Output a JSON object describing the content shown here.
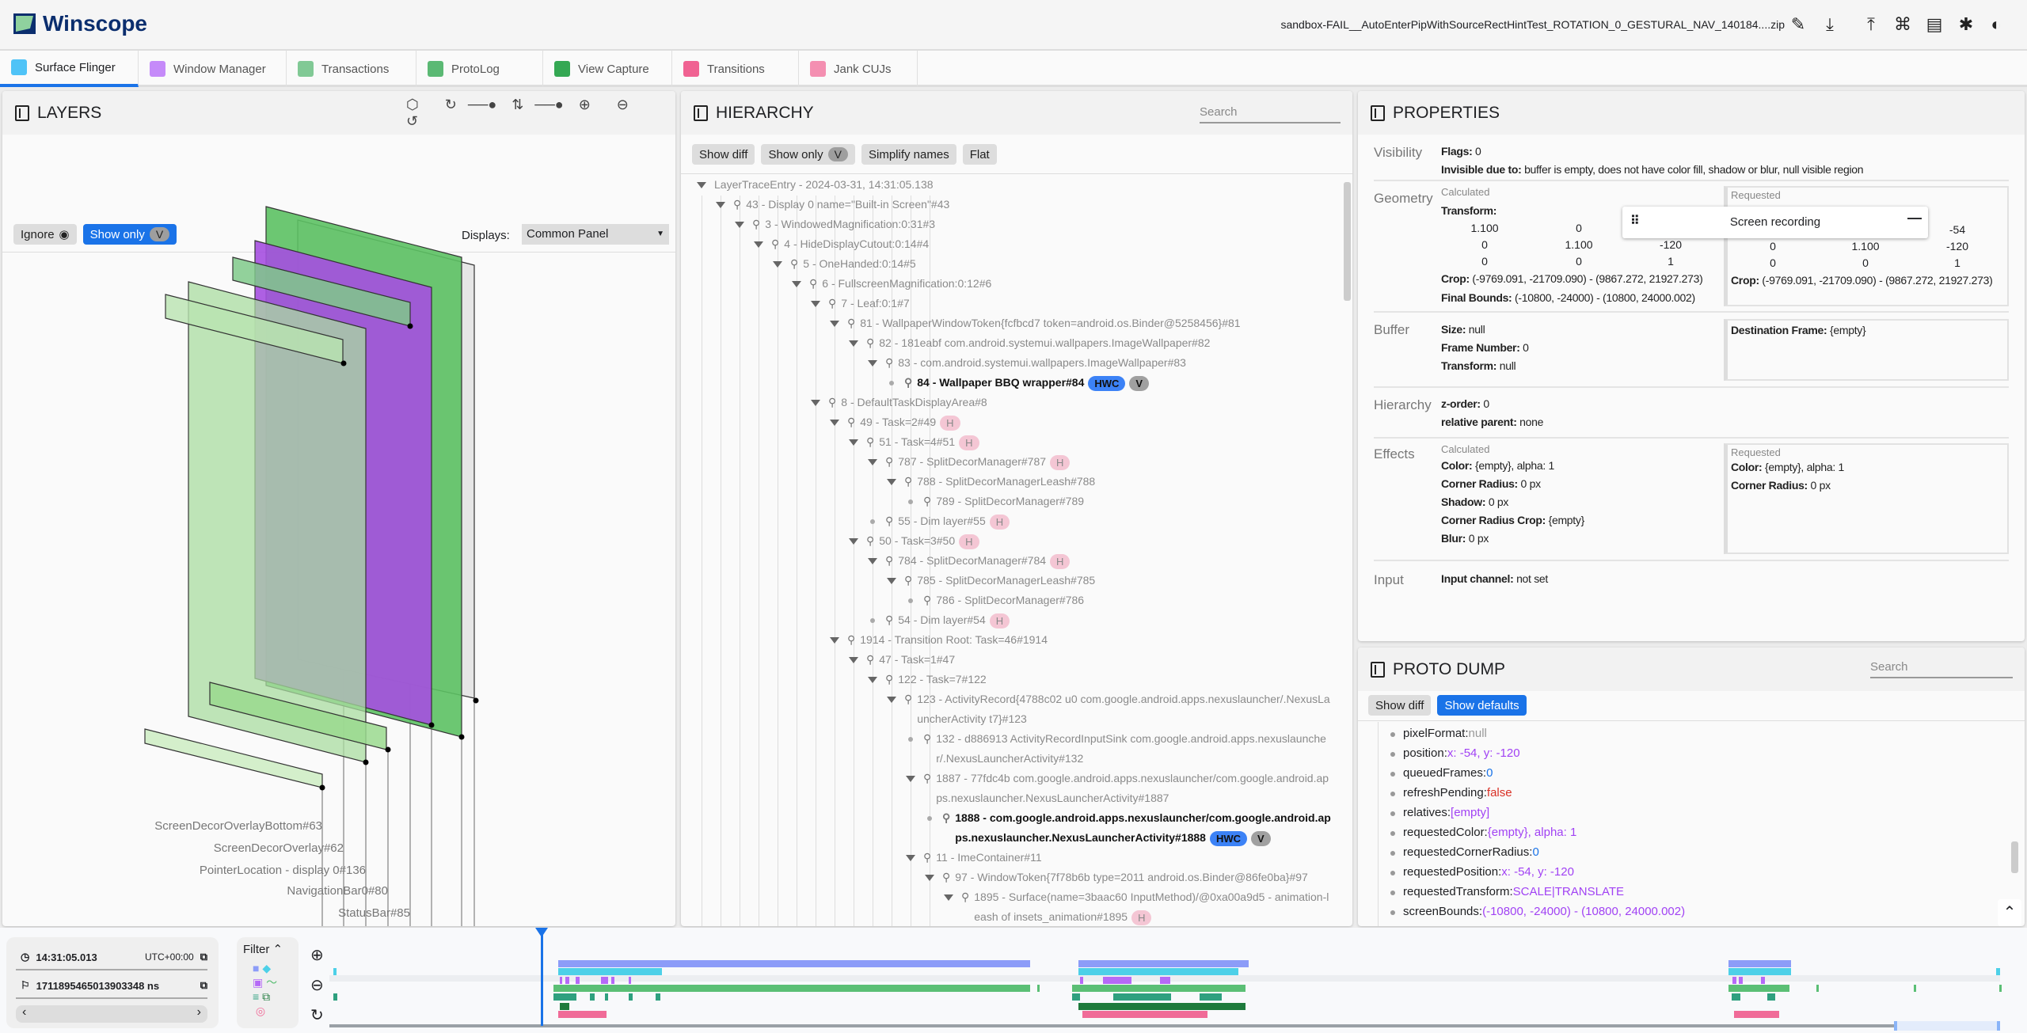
{
  "app": {
    "title": "Winscope",
    "filename": "sandbox-FAIL__AutoEnterPipWithSourceRectHintTest_ROTATION_0_GESTURAL_NAV_140184....zip",
    "icons": [
      "edit-icon",
      "download-icon",
      "upload-icon",
      "shortcut-icon",
      "docs-icon",
      "bug-icon",
      "theme-icon"
    ]
  },
  "tabs": [
    {
      "label": "Surface Flinger",
      "color": "#4fc3f7"
    },
    {
      "label": "Window Manager",
      "color": "#c58af9"
    },
    {
      "label": "Transactions",
      "color": "#81c995"
    },
    {
      "label": "ProtoLog",
      "color": "#5bb974"
    },
    {
      "label": "View Capture",
      "color": "#34a853"
    },
    {
      "label": "Transitions",
      "color": "#f06292"
    },
    {
      "label": "Jank CUJs",
      "color": "#f48fb1"
    }
  ],
  "layers": {
    "title": "LAYERS",
    "ignore": "Ignore",
    "show_only": "Show only",
    "v": "V",
    "displays_label": "Displays:",
    "display_value": "Common Panel",
    "labels": [
      "ScreenDecorOverlayBottom#63",
      "ScreenDecorOverlay#62",
      "PointerLocation - display 0#136",
      "NavigationBar0#80",
      "StatusBar#85"
    ]
  },
  "hierarchy": {
    "title": "HIERARCHY",
    "search_placeholder": "Search",
    "buttons": {
      "show_diff": "Show diff",
      "show_only": "Show only",
      "v": "V",
      "simplify": "Simplify names",
      "flat": "Flat"
    },
    "rows": [
      {
        "d": 0,
        "t": "LayerTraceEntry - 2024-03-31, 14:31:05.138",
        "exp": true,
        "root": true
      },
      {
        "d": 1,
        "t": "43 - Display 0 name=\"Built-in Screen\"#43",
        "exp": true
      },
      {
        "d": 2,
        "t": "3 - WindowedMagnification:0:31#3",
        "exp": true
      },
      {
        "d": 3,
        "t": "4 - HideDisplayCutout:0:14#4",
        "exp": true
      },
      {
        "d": 4,
        "t": "5 - OneHanded:0:14#5",
        "exp": true
      },
      {
        "d": 5,
        "t": "6 - FullscreenMagnification:0:12#6",
        "exp": true
      },
      {
        "d": 6,
        "t": "7 - Leaf:0:1#7",
        "exp": true
      },
      {
        "d": 7,
        "t": "81 - WallpaperWindowToken{fcfbcd7 token=android.os.Binder@5258456}#81",
        "exp": true
      },
      {
        "d": 8,
        "t": "82 - 181eabf com.android.systemui.wallpapers.ImageWallpaper#82",
        "exp": true
      },
      {
        "d": 9,
        "t": "83 - com.android.systemui.wallpapers.ImageWallpaper#83",
        "exp": true
      },
      {
        "d": 10,
        "t": "84 - Wallpaper BBQ wrapper#84",
        "bold": true,
        "badges": [
          "HWC",
          "V"
        ]
      },
      {
        "d": 6,
        "t": "8 - DefaultTaskDisplayArea#8",
        "exp": true
      },
      {
        "d": 7,
        "t": "49 - Task=2#49",
        "exp": true,
        "badges": [
          "H"
        ]
      },
      {
        "d": 8,
        "t": "51 - Task=4#51",
        "exp": true,
        "badges": [
          "H"
        ]
      },
      {
        "d": 9,
        "t": "787 - SplitDecorManager#787",
        "exp": true,
        "badges": [
          "H"
        ]
      },
      {
        "d": 10,
        "t": "788 - SplitDecorManagerLeash#788",
        "exp": true
      },
      {
        "d": 11,
        "t": "789 - SplitDecorManager#789"
      },
      {
        "d": 9,
        "t": "55 - Dim layer#55",
        "badges": [
          "H"
        ]
      },
      {
        "d": 8,
        "t": "50 - Task=3#50",
        "exp": true,
        "badges": [
          "H"
        ]
      },
      {
        "d": 9,
        "t": "784 - SplitDecorManager#784",
        "exp": true,
        "badges": [
          "H"
        ]
      },
      {
        "d": 10,
        "t": "785 - SplitDecorManagerLeash#785",
        "exp": true
      },
      {
        "d": 11,
        "t": "786 - SplitDecorManager#786"
      },
      {
        "d": 9,
        "t": "54 - Dim layer#54",
        "badges": [
          "H"
        ]
      },
      {
        "d": 7,
        "t": "1914 - Transition Root: Task=46#1914",
        "exp": true
      },
      {
        "d": 8,
        "t": "47 - Task=1#47",
        "exp": true
      },
      {
        "d": 9,
        "t": "122 - Task=7#122",
        "exp": true
      },
      {
        "d": 10,
        "t": "123 - ActivityRecord{4788c02 u0 com.google.android.apps.nexuslauncher/.NexusLauncherActivity t7}#123",
        "exp": true,
        "wrap": true
      },
      {
        "d": 11,
        "t": "132 - d886913 ActivityRecordInputSink com.google.android.apps.nexuslauncher/.NexusLauncherActivity#132",
        "wrap": true
      },
      {
        "d": 11,
        "t": "1887 - 77fdc4b com.google.android.apps.nexuslauncher/com.google.android.apps.nexuslauncher.NexusLauncherActivity#1887",
        "exp": true,
        "wrap": true
      },
      {
        "d": 12,
        "t": "1888 - com.google.android.apps.nexuslauncher/com.google.android.apps.nexuslauncher.NexusLauncherActivity#1888",
        "bold": true,
        "wrap": true,
        "badges": [
          "HWC",
          "V"
        ]
      },
      {
        "d": 11,
        "t": "11 - ImeContainer#11",
        "exp": true
      },
      {
        "d": 12,
        "t": "97 - WindowToken{7f78b6b type=2011 android.os.Binder@86fe0ba}#97",
        "exp": true
      },
      {
        "d": 13,
        "t": "1895 - Surface(name=3baac60 InputMethod)/@0xa00a9d5 - animation-leash of insets_animation#1895",
        "exp": true,
        "wrap": true,
        "badges": [
          "H"
        ]
      }
    ]
  },
  "properties": {
    "title": "PROPERTIES",
    "visibility": {
      "label": "Visibility",
      "flags_k": "Flags:",
      "flags_v": "0",
      "inv_k": "Invisible due to:",
      "inv_v": "buffer is empty, does not have color fill, shadow or blur, null visible region"
    },
    "geometry": {
      "label": "Geometry",
      "calculated": "Calculated",
      "requested": "Requested",
      "transform_k": "Transform:",
      "calc_matrix": [
        [
          "1.100",
          "0",
          ""
        ],
        [
          "0",
          "1.100",
          "-120"
        ],
        [
          "0",
          "0",
          "1"
        ]
      ],
      "req_matrix": [
        [
          "",
          "",
          "-54"
        ],
        [
          "0",
          "1.100",
          "-120"
        ],
        [
          "0",
          "0",
          "1"
        ]
      ],
      "crop_k": "Crop:",
      "crop_v": "(-9769.091, -21709.090) - (9867.272, 21927.273)",
      "req_crop_v": "(-9769.091, -21709.090) - (9867.272, 21927.273)",
      "fb_k": "Final Bounds:",
      "fb_v": "(-10800, -24000) - (10800, 24000.002)"
    },
    "buffer": {
      "label": "Buffer",
      "size_k": "Size:",
      "size_v": "null",
      "fn_k": "Frame Number:",
      "fn_v": "0",
      "tr_k": "Transform:",
      "tr_v": "null",
      "df_k": "Destination Frame:",
      "df_v": "{empty}"
    },
    "hierarchy": {
      "label": "Hierarchy",
      "z_k": "z-order:",
      "z_v": "0",
      "rp_k": "relative parent:",
      "rp_v": "none"
    },
    "effects": {
      "label": "Effects",
      "calculated": "Calculated",
      "requested": "Requested",
      "color_k": "Color:",
      "color_v": "{empty}, alpha: 1",
      "cr_k": "Corner Radius:",
      "cr_v": "0 px",
      "sh_k": "Shadow:",
      "sh_v": "0 px",
      "crc_k": "Corner Radius Crop:",
      "crc_v": "{empty}",
      "blur_k": "Blur:",
      "blur_v": "0 px",
      "rcolor_v": "{empty}, alpha: 1",
      "rcr_v": "0 px"
    },
    "input": {
      "label": "Input",
      "ic_k": "Input channel:",
      "ic_v": "not set"
    },
    "overlay": {
      "title": "Screen recording"
    }
  },
  "proto": {
    "title": "PROTO DUMP",
    "search_placeholder": "Search",
    "show_diff": "Show diff",
    "show_defaults": "Show defaults",
    "items": [
      {
        "k": "pixelFormat:",
        "v": "null",
        "c": "#999999"
      },
      {
        "k": "position:",
        "v": "x: -54, y: -120",
        "c": "#a142f4"
      },
      {
        "k": "queuedFrames:",
        "v": "0",
        "c": "#1a73e8"
      },
      {
        "k": "refreshPending:",
        "v": "false",
        "c": "#d93025"
      },
      {
        "k": "relatives:",
        "v": "[empty]",
        "c": "#a142f4"
      },
      {
        "k": "requestedColor:",
        "v": "{empty}, alpha: 1",
        "c": "#a142f4"
      },
      {
        "k": "requestedCornerRadius:",
        "v": "0",
        "c": "#1a73e8"
      },
      {
        "k": "requestedPosition:",
        "v": "x: -54, y: -120",
        "c": "#a142f4"
      },
      {
        "k": "requestedTransform:",
        "v": "SCALE|TRANSLATE",
        "c": "#a142f4"
      },
      {
        "k": "screenBounds:",
        "v": "(-10800, -24000) - (10800, 24000.002)",
        "c": "#a142f4"
      }
    ]
  },
  "timeline": {
    "time": "14:31:05.013",
    "tz": "UTC+00:00",
    "ns": "1711895465013903348 ns",
    "filter": "Filter",
    "prev": "‹",
    "next": "›",
    "colors": [
      "#8c9cf8",
      "#4dd0e8",
      "#b56af7",
      "#5bbf75",
      "#2fa07f",
      "#1e7a3c",
      "#f06b98"
    ]
  }
}
